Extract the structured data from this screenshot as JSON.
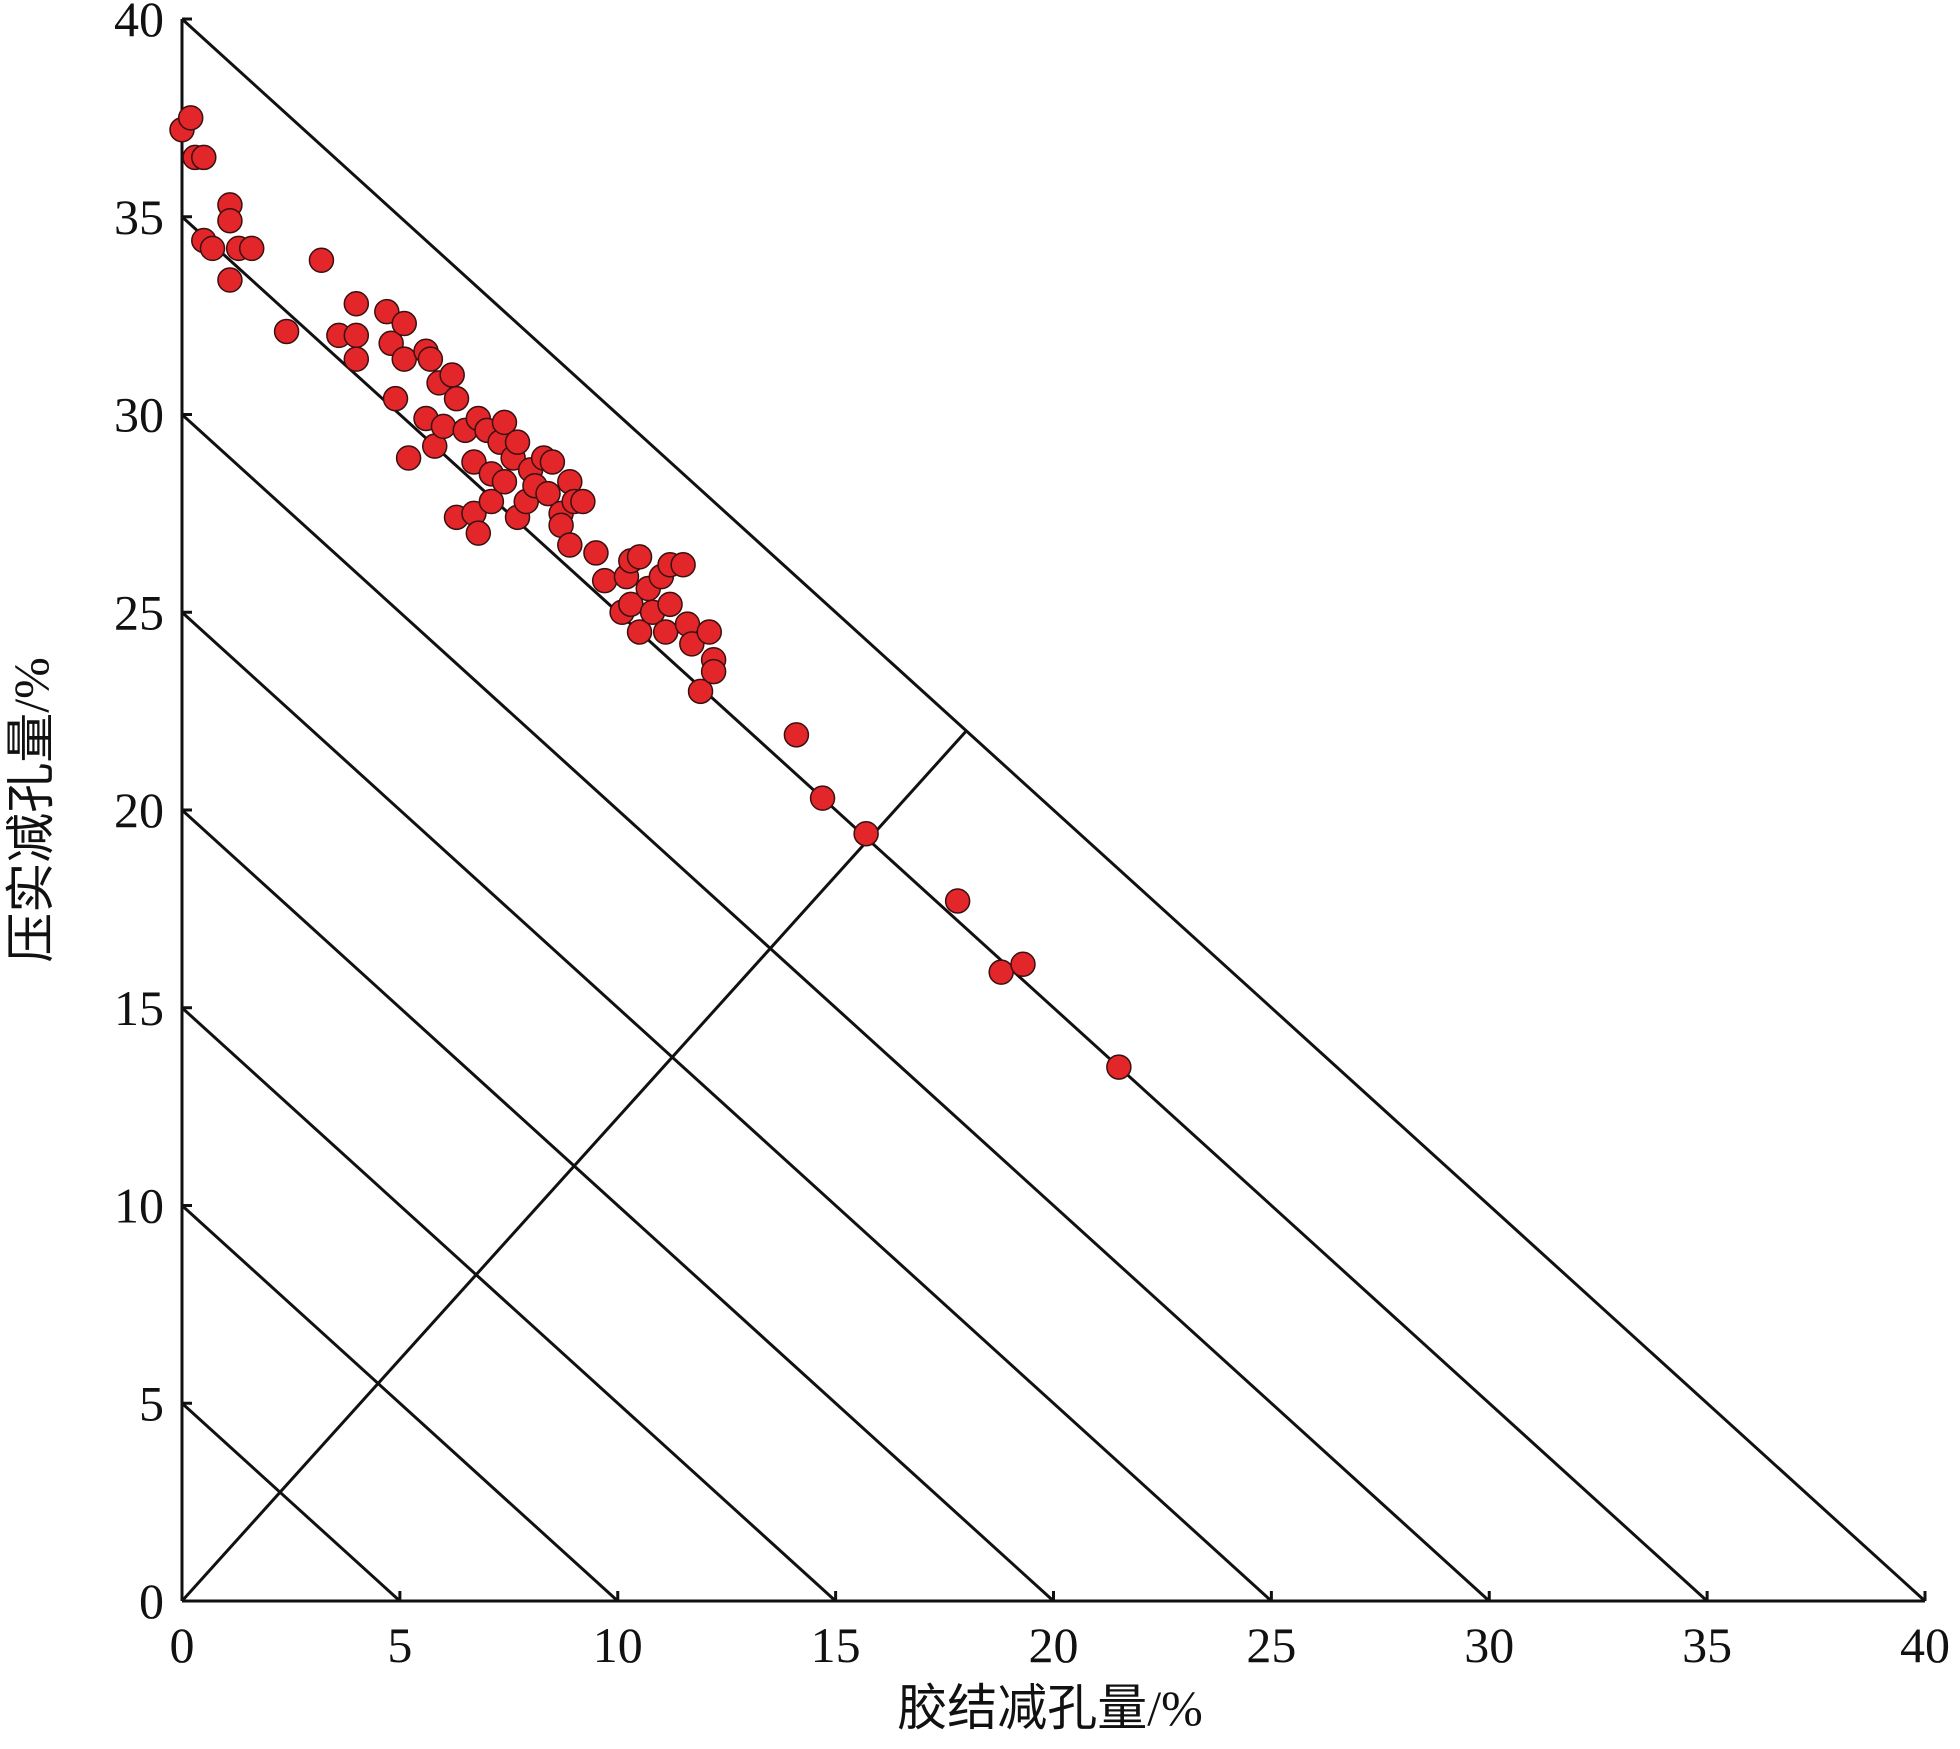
{
  "chart_data": {
    "type": "scatter",
    "xlabel": "胶结减孔量/%",
    "ylabel": "压实减孔量/%",
    "xlim": [
      0,
      40
    ],
    "ylim": [
      0,
      40
    ],
    "xticks": [
      0,
      5,
      10,
      15,
      20,
      25,
      30,
      35,
      40
    ],
    "yticks": [
      0,
      5,
      10,
      15,
      20,
      25,
      30,
      35,
      40
    ],
    "color": "#e2262a",
    "x": [
      0,
      0.2,
      0.3,
      0.5,
      0.5,
      0.7,
      1.1,
      1.1,
      1.1,
      1.3,
      1.6,
      2.4,
      3.2,
      3.6,
      4.0,
      4.0,
      4.0,
      4.7,
      4.8,
      5.1,
      5.1,
      4.9,
      5.2,
      5.6,
      5.7,
      5.6,
      5.9,
      5.8,
      6.0,
      6.2,
      6.3,
      6.3,
      6.5,
      6.7,
      6.7,
      6.8,
      6.8,
      7.0,
      7.1,
      7.1,
      7.3,
      7.4,
      7.4,
      7.6,
      7.7,
      7.7,
      7.9,
      8.0,
      8.1,
      8.3,
      8.4,
      8.5,
      8.7,
      8.7,
      8.9,
      8.9,
      9.0,
      9.2,
      9.5,
      9.7,
      10.1,
      10.2,
      10.3,
      10.3,
      10.5,
      10.5,
      10.7,
      10.8,
      11.0,
      11.1,
      11.2,
      11.2,
      11.5,
      11.6,
      11.7,
      11.9,
      12.1,
      12.2,
      12.2,
      14.1,
      14.7,
      15.7,
      17.8,
      18.8,
      19.3,
      21.5
    ],
    "y": [
      37.2,
      37.5,
      36.5,
      36.5,
      34.4,
      34.2,
      35.3,
      34.9,
      33.4,
      34.2,
      34.2,
      32.1,
      33.9,
      32.0,
      32.8,
      32.0,
      31.4,
      32.6,
      31.8,
      32.3,
      31.4,
      30.4,
      28.9,
      31.6,
      31.4,
      29.9,
      30.8,
      29.2,
      29.7,
      31.0,
      30.4,
      27.4,
      29.6,
      28.8,
      27.5,
      27.0,
      29.9,
      29.6,
      28.5,
      27.8,
      29.3,
      29.8,
      28.3,
      28.9,
      29.3,
      27.4,
      27.8,
      28.6,
      28.2,
      28.9,
      28.0,
      28.8,
      27.5,
      27.2,
      28.3,
      26.7,
      27.8,
      27.8,
      26.5,
      25.8,
      25.0,
      25.9,
      26.3,
      25.2,
      26.4,
      24.5,
      25.6,
      25.0,
      25.9,
      24.5,
      26.2,
      25.2,
      26.2,
      24.7,
      24.2,
      23.0,
      24.5,
      23.8,
      23.5,
      21.9,
      20.3,
      19.4,
      17.7,
      15.9,
      16.1,
      13.5
    ],
    "reference_lines": [
      {
        "x": [
          0,
          5
        ],
        "y": [
          5,
          0
        ]
      },
      {
        "x": [
          0,
          10
        ],
        "y": [
          10,
          0
        ]
      },
      {
        "x": [
          0,
          15
        ],
        "y": [
          15,
          0
        ]
      },
      {
        "x": [
          0,
          20
        ],
        "y": [
          20,
          0
        ]
      },
      {
        "x": [
          0,
          25
        ],
        "y": [
          25,
          0
        ]
      },
      {
        "x": [
          0,
          30
        ],
        "y": [
          30,
          0
        ]
      },
      {
        "x": [
          0,
          35
        ],
        "y": [
          35,
          0
        ]
      },
      {
        "x": [
          0,
          40
        ],
        "y": [
          40,
          0
        ]
      },
      {
        "x": [
          0,
          18
        ],
        "y": [
          0,
          22
        ]
      }
    ]
  }
}
